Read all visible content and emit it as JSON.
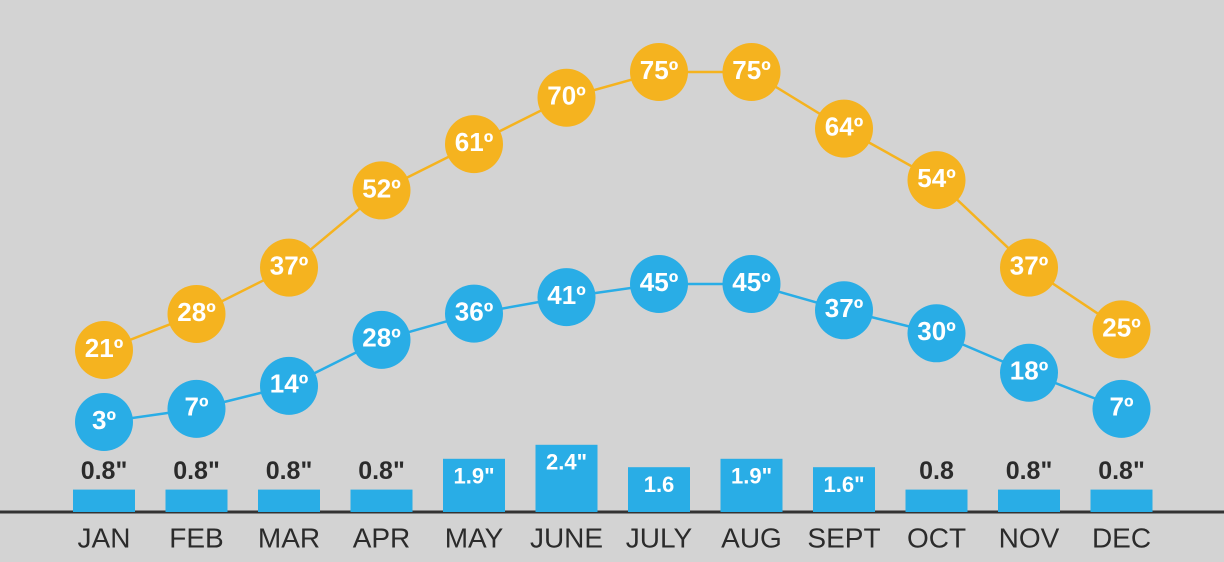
{
  "chart_data": {
    "type": "line",
    "categories": [
      "JAN",
      "FEB",
      "MAR",
      "APR",
      "MAY",
      "JUNE",
      "JULY",
      "AUG",
      "SEPT",
      "OCT",
      "NOV",
      "DEC"
    ],
    "series": [
      {
        "type": "line",
        "color": "#f5b31f",
        "values": [
          21,
          28,
          37,
          52,
          61,
          70,
          75,
          75,
          64,
          54,
          37,
          25
        ],
        "value_labels": [
          "21º",
          "28º",
          "37º",
          "52º",
          "61º",
          "70º",
          "75º",
          "75º",
          "64º",
          "54º",
          "37º",
          "25º"
        ]
      },
      {
        "type": "line",
        "color": "#29ade6",
        "values": [
          3,
          7,
          14,
          28,
          36,
          41,
          45,
          45,
          37,
          30,
          18,
          7
        ],
        "value_labels": [
          "3º",
          "7º",
          "14º",
          "28º",
          "36º",
          "41º",
          "45º",
          "45º",
          "37º",
          "30º",
          "18º",
          "7º"
        ]
      },
      {
        "type": "bar",
        "color": "#29ade6",
        "values": [
          0.8,
          0.8,
          0.8,
          0.8,
          1.9,
          2.4,
          1.6,
          1.9,
          1.6,
          0.8,
          0.8,
          0.8
        ],
        "value_labels": [
          "0.8\"",
          "0.8\"",
          "0.8\"",
          "0.8\"",
          "1.9\"",
          "2.4\"",
          "1.6",
          "1.9\"",
          "1.6\"",
          "0.8",
          "0.8\"",
          "0.8\""
        ]
      }
    ]
  }
}
